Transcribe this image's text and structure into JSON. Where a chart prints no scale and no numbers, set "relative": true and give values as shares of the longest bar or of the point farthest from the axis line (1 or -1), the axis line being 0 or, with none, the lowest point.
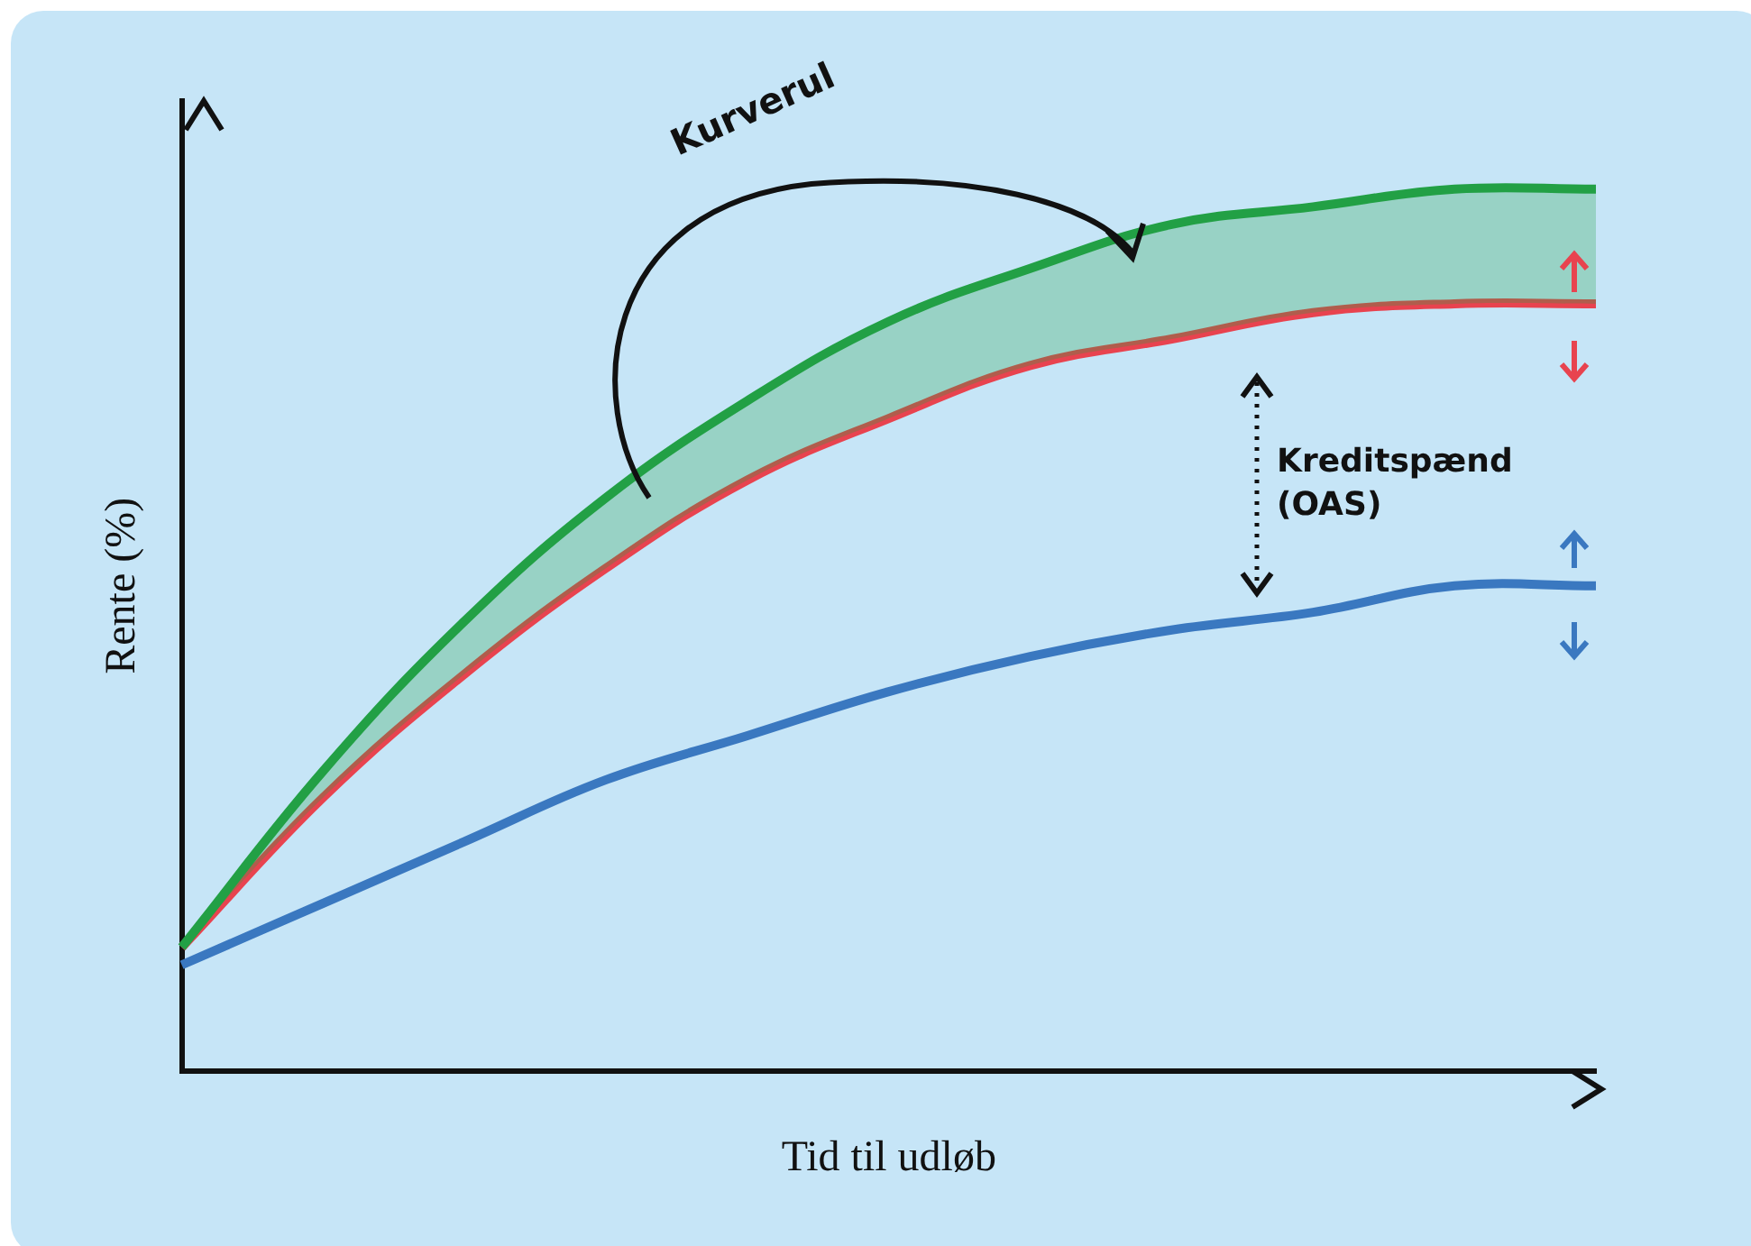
{
  "chart_data": {
    "type": "line",
    "relative": true,
    "xlabel": "Tid til udløb",
    "ylabel": "Rente (%)",
    "categories": [
      null,
      null,
      null,
      null,
      null,
      null,
      null,
      null,
      null,
      null,
      null
    ],
    "series": [
      {
        "color": "#22a045",
        "values": [
          0.14,
          0.34,
          0.51,
          0.65,
          0.76,
          0.85,
          0.91,
          0.96,
          0.98,
          1.0,
          1.0
        ]
      },
      {
        "color": "#e8434f",
        "values": [
          0.14,
          0.31,
          0.45,
          0.57,
          0.67,
          0.74,
          0.8,
          0.83,
          0.86,
          0.87,
          0.87
        ]
      },
      {
        "color": "#3a78c0",
        "values": [
          0.12,
          0.19,
          0.26,
          0.33,
          0.38,
          0.43,
          0.47,
          0.5,
          0.52,
          0.55,
          0.55
        ]
      }
    ],
    "annotations": [
      "Kurverul",
      "Kreditspænd (OAS)"
    ],
    "grid": false,
    "legend": false,
    "marker": "none",
    "line_style": "solid"
  }
}
